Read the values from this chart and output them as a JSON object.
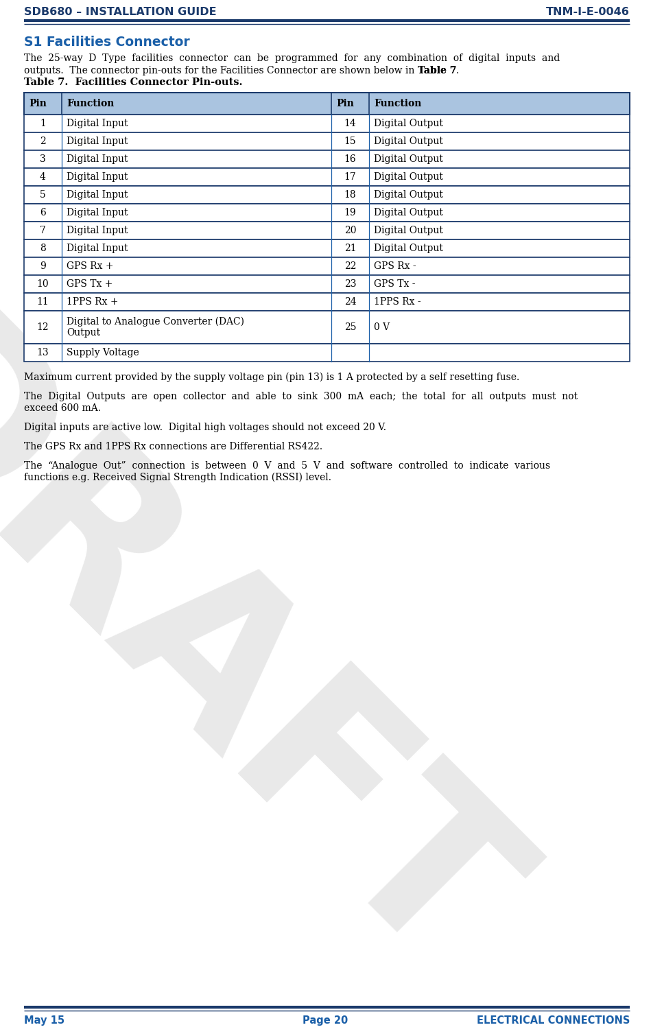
{
  "header_left": "SDB680 – INSTALLATION GUIDE",
  "header_right": "TNM-I-E-0046",
  "footer_left": "May 15",
  "footer_center": "Page 20",
  "footer_right": "ELECTRICAL CONNECTIONS",
  "header_color": "#1b3a6b",
  "section_title": "S1 Facilities Connector",
  "section_title_color": "#1a5fa8",
  "table_caption": "Table 7.  Facilities Connector Pin-outs.",
  "table_header_bg": "#aac4e0",
  "table_border_color": "#1a5fa8",
  "table_outer_border": "#1b3a6b",
  "table_header": [
    "Pin",
    "Function",
    "Pin",
    "Function"
  ],
  "table_rows": [
    [
      "1",
      "Digital Input",
      "14",
      "Digital Output"
    ],
    [
      "2",
      "Digital Input",
      "15",
      "Digital Output"
    ],
    [
      "3",
      "Digital Input",
      "16",
      "Digital Output"
    ],
    [
      "4",
      "Digital Input",
      "17",
      "Digital Output"
    ],
    [
      "5",
      "Digital Input",
      "18",
      "Digital Output"
    ],
    [
      "6",
      "Digital Input",
      "19",
      "Digital Output"
    ],
    [
      "7",
      "Digital Input",
      "20",
      "Digital Output"
    ],
    [
      "8",
      "Digital Input",
      "21",
      "Digital Output"
    ],
    [
      "9",
      "GPS Rx +",
      "22",
      "GPS Rx -"
    ],
    [
      "10",
      "GPS Tx +",
      "23",
      "GPS Tx -"
    ],
    [
      "11",
      "1PPS Rx +",
      "24",
      "1PPS Rx -"
    ],
    [
      "12",
      "Digital to Analogue Converter (DAC)\nOutput",
      "25",
      "0 V"
    ],
    [
      "13",
      "Supply Voltage",
      "",
      ""
    ]
  ],
  "bg_color": "#ffffff",
  "text_color": "#000000",
  "body_fontsize": 10.0,
  "table_fontsize": 10.0,
  "caption_fontsize": 10.5,
  "section_fontsize": 13.5,
  "header_fontsize": 11.5
}
